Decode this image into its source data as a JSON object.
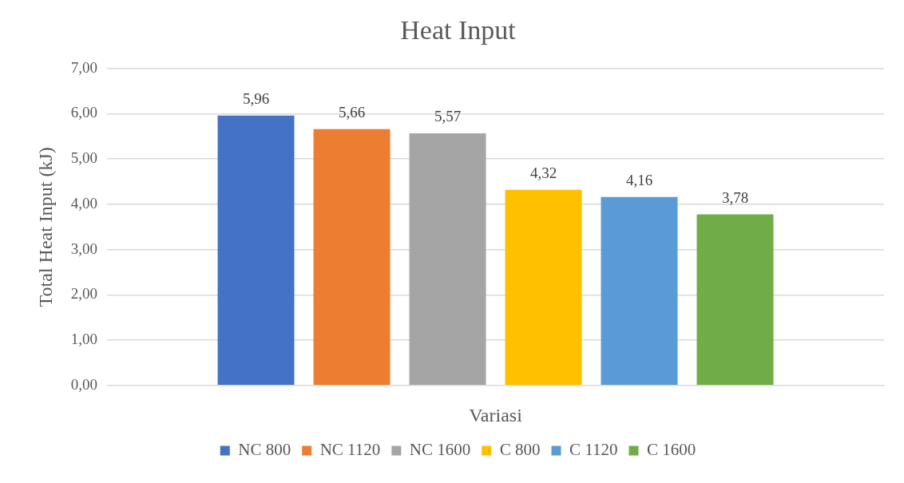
{
  "chart_data": {
    "type": "bar",
    "title": "Heat Input",
    "xlabel": "Variasi",
    "ylabel": "Total Heat Input (kJ)",
    "categories": [
      null
    ],
    "series": [
      {
        "name": "NC 800",
        "color": "#4472c4",
        "values": [
          5.96
        ],
        "value_labels": [
          "5,96"
        ]
      },
      {
        "name": "NC 1120",
        "color": "#ed7d31",
        "values": [
          5.66
        ],
        "value_labels": [
          "5,66"
        ]
      },
      {
        "name": "NC 1600",
        "color": "#a5a5a5",
        "values": [
          5.57
        ],
        "value_labels": [
          "5,57"
        ]
      },
      {
        "name": "C 800",
        "color": "#ffc000",
        "values": [
          4.32
        ],
        "value_labels": [
          "4,32"
        ]
      },
      {
        "name": "C 1120",
        "color": "#5b9bd5",
        "values": [
          4.16
        ],
        "value_labels": [
          "4,16"
        ]
      },
      {
        "name": "C 1600",
        "color": "#70ad47",
        "values": [
          3.78
        ],
        "value_labels": [
          "3,78"
        ]
      }
    ],
    "ylim": [
      0,
      7
    ],
    "yticks": [
      {
        "value": 0,
        "label": "0,00"
      },
      {
        "value": 1,
        "label": "1,00"
      },
      {
        "value": 2,
        "label": "2,00"
      },
      {
        "value": 3,
        "label": "3,00"
      },
      {
        "value": 4,
        "label": "4,00"
      },
      {
        "value": 5,
        "label": "5,00"
      },
      {
        "value": 6,
        "label": "6,00"
      },
      {
        "value": 7,
        "label": "7,00"
      }
    ],
    "grid": "y",
    "legend": "bottom"
  }
}
